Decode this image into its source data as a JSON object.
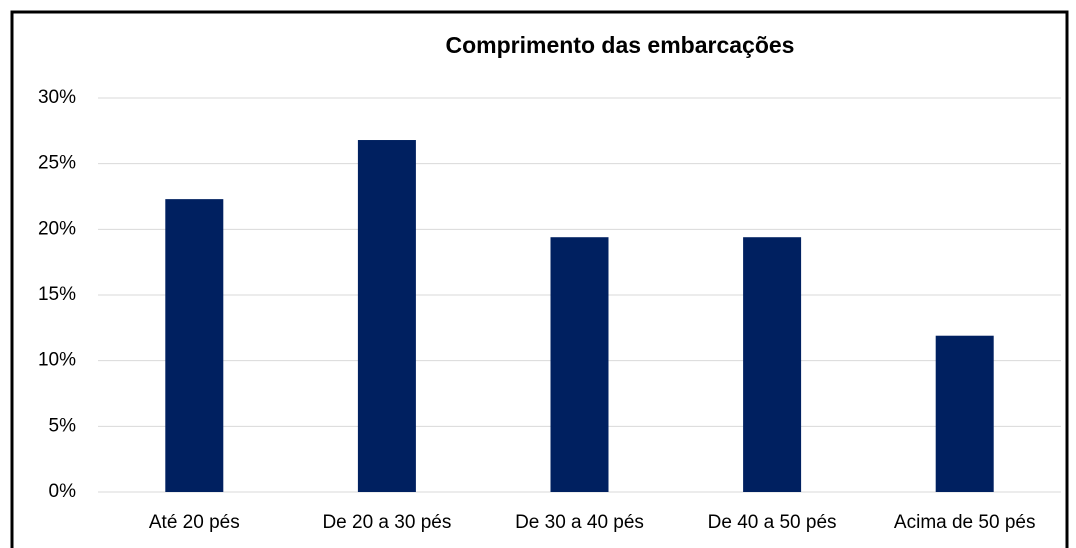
{
  "chart_data": {
    "type": "bar",
    "title": "Comprimento das embarcações",
    "categories": [
      "Até 20 pés",
      "De 20 a 30 pés",
      "De 30 a 40 pés",
      "De 40 a 50 pés",
      "Acima de 50 pés"
    ],
    "values": [
      22.3,
      26.8,
      19.4,
      19.4,
      11.9
    ],
    "color": "#002060",
    "ylim": [
      0,
      30
    ],
    "yticks": [
      {
        "value": 0,
        "label": "0%"
      },
      {
        "value": 5,
        "label": "5%"
      },
      {
        "value": 10,
        "label": "10%"
      },
      {
        "value": 15,
        "label": "15%"
      },
      {
        "value": 20,
        "label": "20%"
      },
      {
        "value": 25,
        "label": "25%"
      },
      {
        "value": 30,
        "label": "30%"
      }
    ],
    "grid": true
  }
}
